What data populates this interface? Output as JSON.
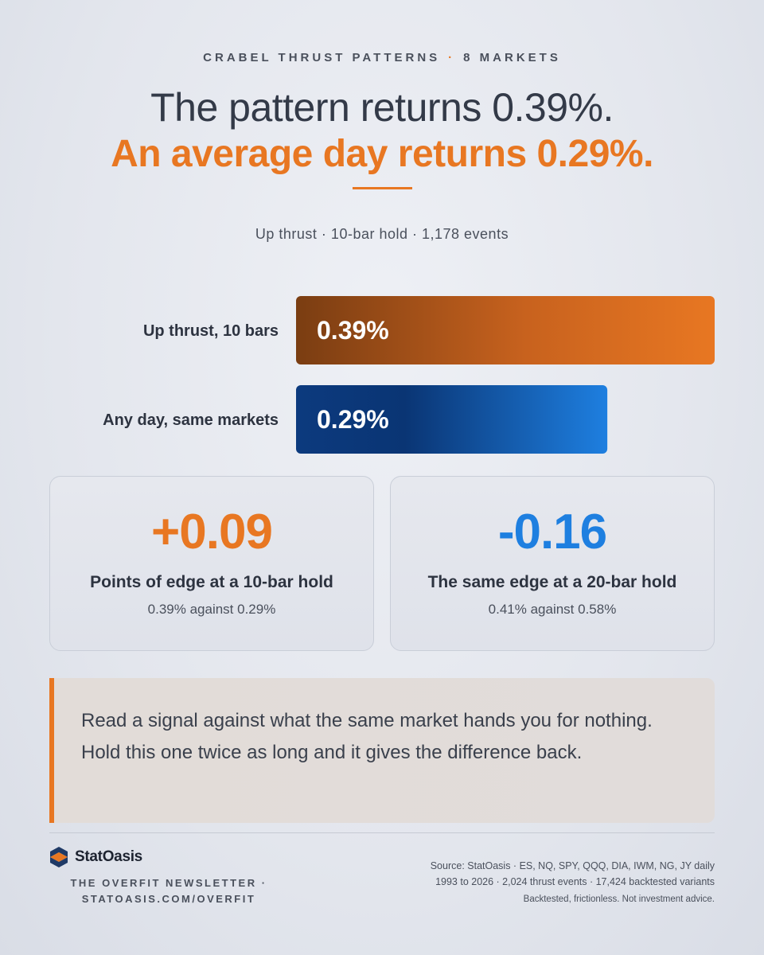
{
  "header": {
    "kicker_left": "CRABEL THRUST PATTERNS",
    "kicker_sep": "·",
    "kicker_right": "8 MARKETS",
    "title_line1": "The pattern returns 0.39%.",
    "title_line2": "An average day returns 0.29%.",
    "subtitle": "Up thrust · 10-bar hold · 1,178 events"
  },
  "chart_data": {
    "type": "bar",
    "orientation": "horizontal",
    "categories": [
      "Up thrust, 10 bars",
      "Any day, same markets"
    ],
    "values": [
      0.39,
      0.29
    ],
    "value_labels": [
      "0.39%",
      "0.29%"
    ],
    "colors": [
      "#e87722",
      "#1e7fe0"
    ],
    "xlim": [
      0,
      0.39
    ],
    "grid": false
  },
  "cards": {
    "left": {
      "value": "+0.09",
      "caption": "Points of edge at a 10-bar hold",
      "detail": "0.39% against 0.29%"
    },
    "right": {
      "value": "-0.16",
      "caption": "The same edge at a 20-bar hold",
      "detail": "0.41% against 0.58%"
    }
  },
  "quote": {
    "text": "Read a signal against what the same market hands you for nothing. Hold this one twice as long and it gives the difference back."
  },
  "footer": {
    "brand": "StatOasis",
    "newsletter_line1": "THE OVERFIT NEWSLETTER ·",
    "newsletter_line2": "STATOASIS.COM/OVERFIT",
    "source_line1": "Source: StatOasis · ES, NQ, SPY, QQQ, DIA, IWM, NG, JY daily",
    "source_line2": "1993 to 2026 · 2,024 thrust events · 17,424 backtested variants",
    "disclaimer": "Backtested, frictionless. Not investment advice."
  }
}
